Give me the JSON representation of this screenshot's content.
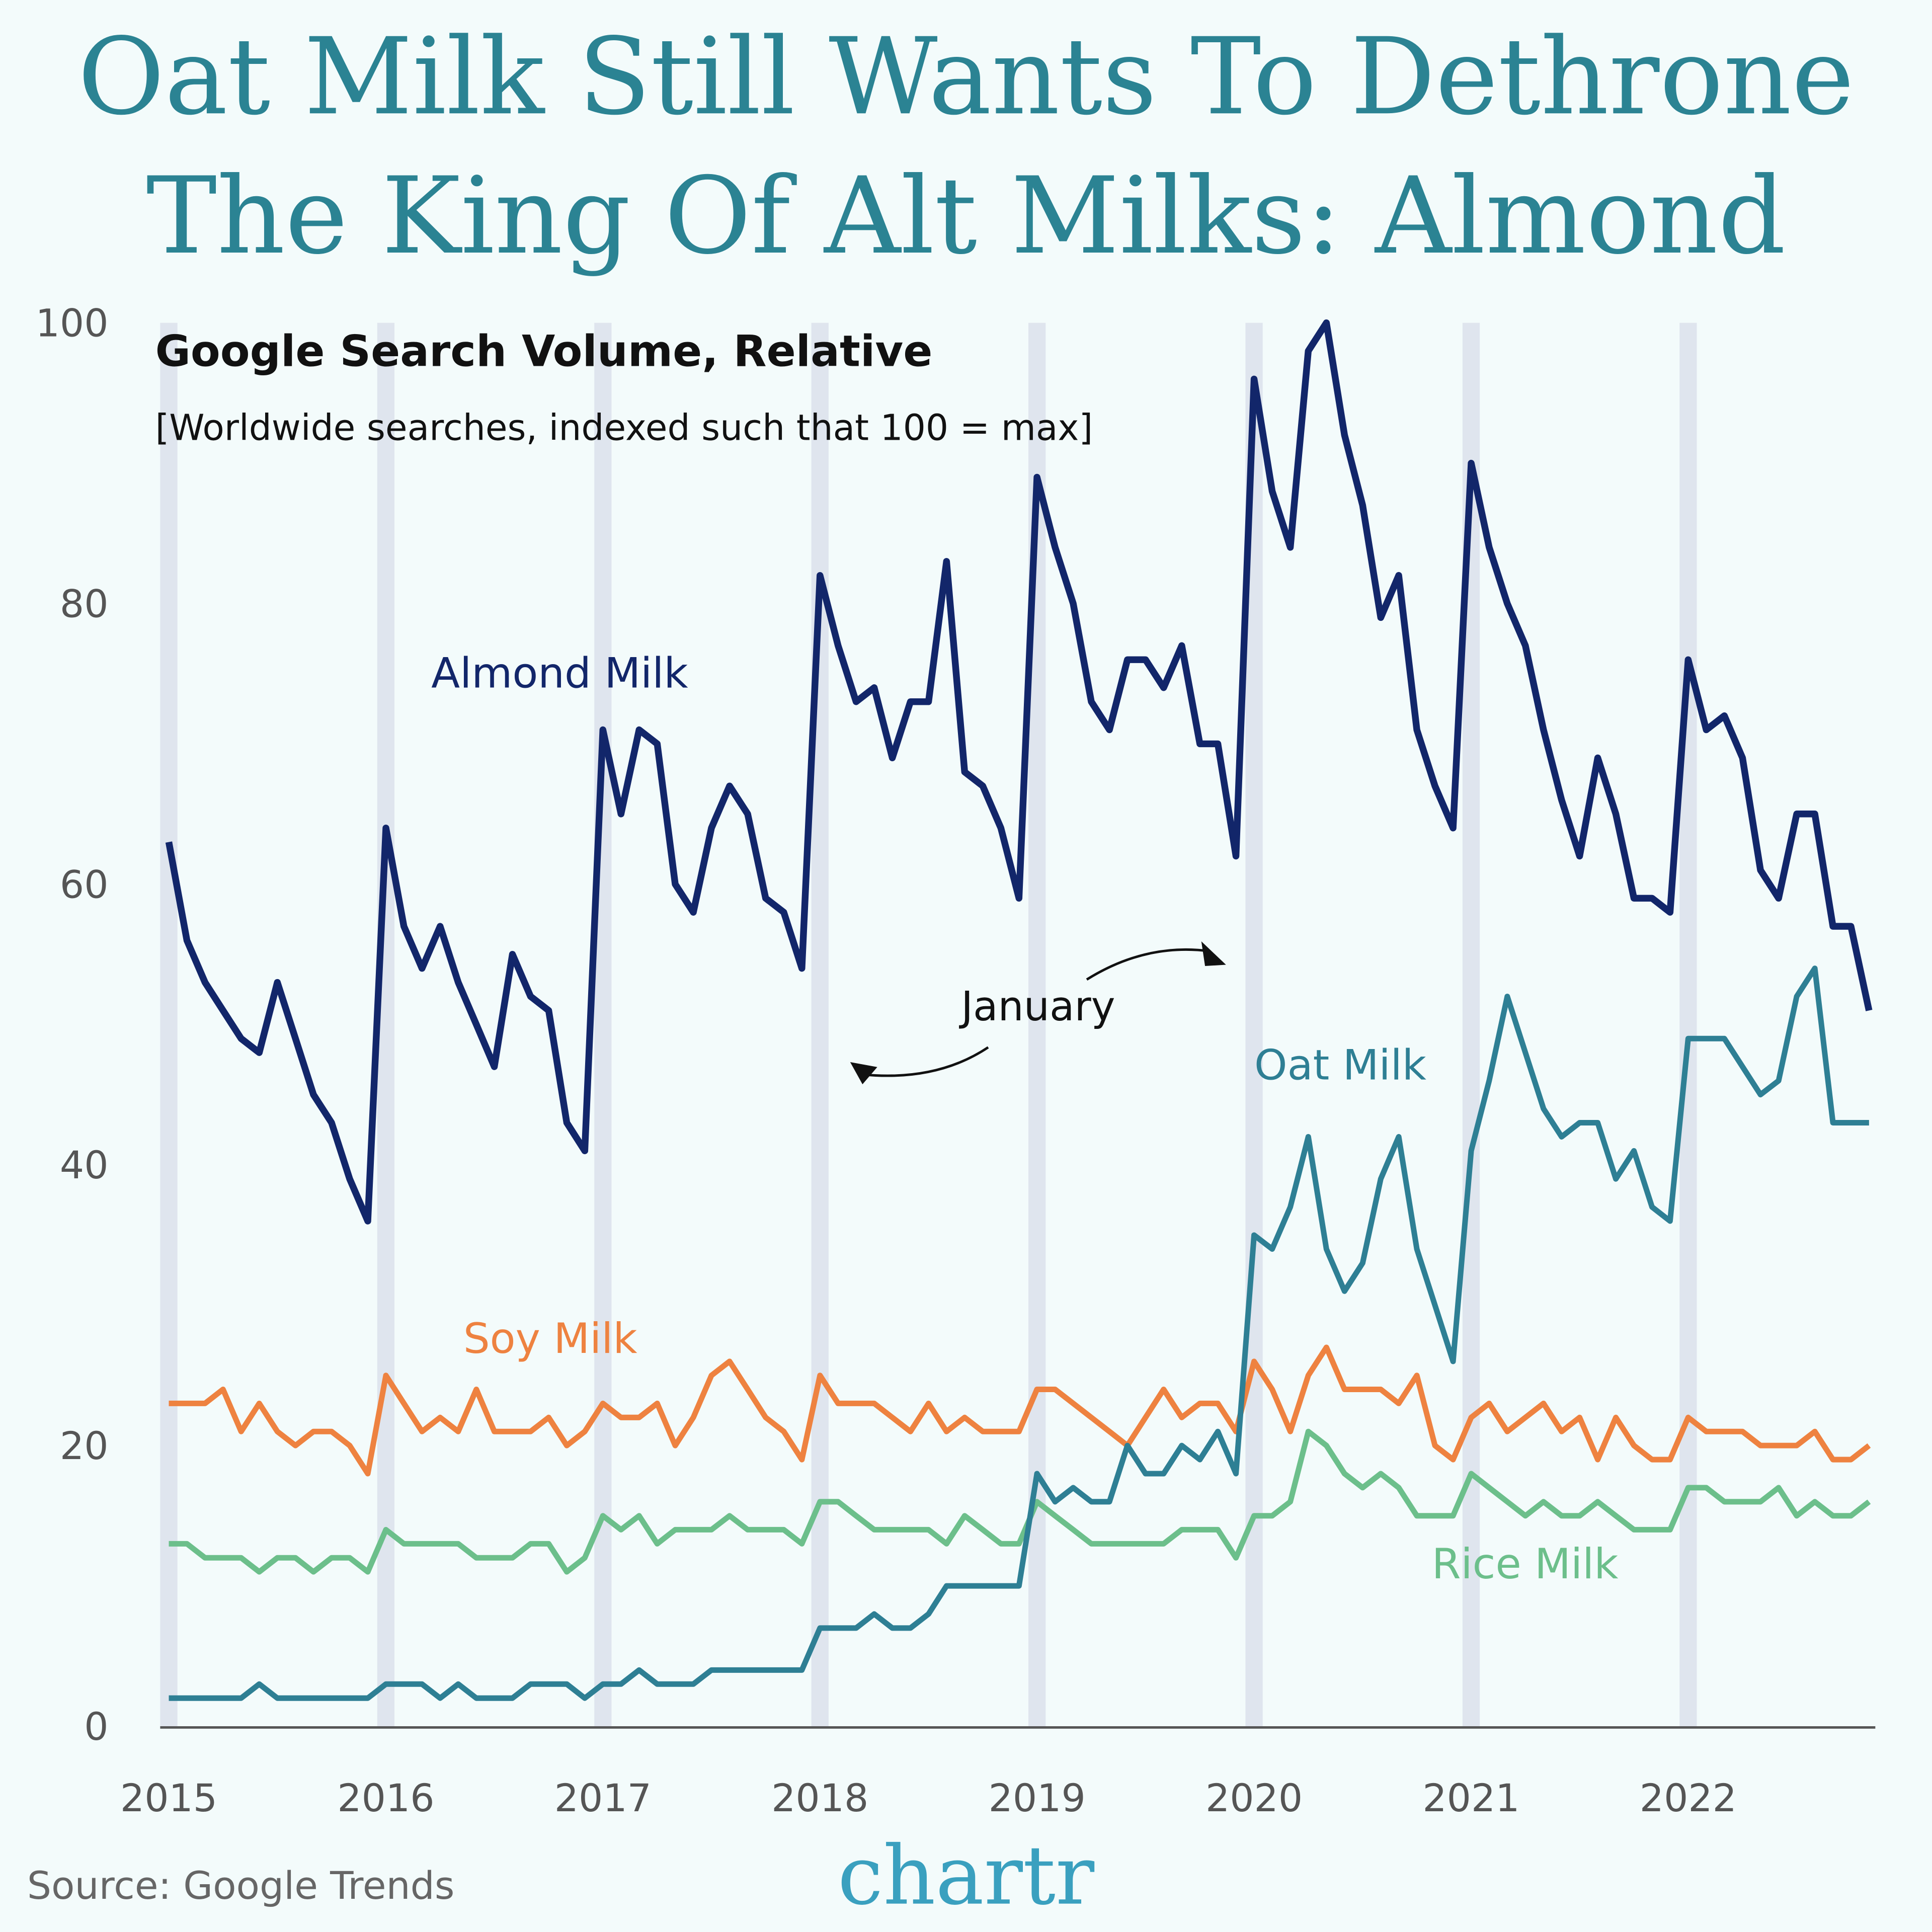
{
  "title_line1": "Oat Milk Still Wants To Dethrone",
  "title_line2": "The King Of Alt Milks: Almond",
  "source": "Source: Google Trends",
  "logo": "chartr",
  "annotation": "January",
  "chart_data": {
    "type": "line",
    "title": "Google Search Volume, Relative",
    "subtitle": "[Worldwide searches, indexed such that 100 = max]",
    "x_start": "2015-01",
    "x_end": "2022-11",
    "frequency": "monthly",
    "x_ticks": [
      "2015",
      "2016",
      "2017",
      "2018",
      "2019",
      "2020",
      "2021",
      "2022"
    ],
    "y_ticks": [
      0,
      20,
      40,
      60,
      80,
      100
    ],
    "ylim": [
      0,
      100
    ],
    "grid": false,
    "january_bands": true,
    "series": [
      {
        "name": "Almond Milk",
        "color": "#12266a",
        "values": [
          63,
          56,
          53,
          51,
          49,
          48,
          53,
          49,
          45,
          43,
          39,
          36,
          64,
          57,
          54,
          57,
          53,
          50,
          47,
          55,
          52,
          51,
          43,
          41,
          71,
          65,
          71,
          70,
          60,
          58,
          64,
          67,
          65,
          59,
          58,
          54,
          82,
          77,
          73,
          74,
          69,
          73,
          73,
          83,
          68,
          67,
          64,
          59,
          89,
          84,
          80,
          73,
          71,
          76,
          76,
          74,
          77,
          70,
          70,
          62,
          96,
          88,
          84,
          98,
          100,
          92,
          87,
          79,
          82,
          71,
          67,
          64,
          90,
          84,
          80,
          77,
          71,
          66,
          62,
          69,
          65,
          59,
          59,
          58,
          76,
          71,
          72,
          69,
          61,
          59,
          65,
          65,
          57,
          57,
          51
        ]
      },
      {
        "name": "Oat Milk",
        "color": "#2e7f94",
        "values": [
          2,
          2,
          2,
          2,
          2,
          3,
          2,
          2,
          2,
          2,
          2,
          2,
          3,
          3,
          3,
          2,
          3,
          2,
          2,
          2,
          3,
          3,
          3,
          2,
          3,
          3,
          4,
          3,
          3,
          3,
          4,
          4,
          4,
          4,
          4,
          4,
          7,
          7,
          7,
          8,
          7,
          7,
          8,
          10,
          10,
          10,
          10,
          10,
          18,
          16,
          17,
          16,
          16,
          20,
          18,
          18,
          20,
          19,
          21,
          18,
          35,
          34,
          37,
          42,
          34,
          31,
          33,
          39,
          42,
          34,
          30,
          26,
          41,
          46,
          52,
          48,
          44,
          42,
          43,
          43,
          39,
          41,
          37,
          36,
          49,
          49,
          49,
          47,
          45,
          46,
          52,
          54,
          43,
          43,
          43
        ]
      },
      {
        "name": "Soy Milk",
        "color": "#ee8240",
        "values": [
          23,
          23,
          23,
          24,
          21,
          23,
          21,
          20,
          21,
          21,
          20,
          18,
          25,
          23,
          21,
          22,
          21,
          24,
          21,
          21,
          21,
          22,
          20,
          21,
          23,
          22,
          22,
          23,
          20,
          22,
          25,
          26,
          24,
          22,
          21,
          19,
          25,
          23,
          23,
          23,
          22,
          21,
          23,
          21,
          22,
          21,
          21,
          21,
          24,
          24,
          23,
          22,
          21,
          20,
          22,
          24,
          22,
          23,
          23,
          21,
          26,
          24,
          21,
          25,
          27,
          24,
          24,
          24,
          23,
          25,
          20,
          19,
          22,
          23,
          21,
          22,
          23,
          21,
          22,
          19,
          22,
          20,
          19,
          19,
          22,
          21,
          21,
          21,
          20,
          20,
          20,
          21,
          19,
          19,
          20
        ]
      },
      {
        "name": "Rice Milk",
        "color": "#6cbf8b",
        "values": [
          13,
          13,
          12,
          12,
          12,
          11,
          12,
          12,
          11,
          12,
          12,
          11,
          14,
          13,
          13,
          13,
          13,
          12,
          12,
          12,
          13,
          13,
          11,
          12,
          15,
          14,
          15,
          13,
          14,
          14,
          14,
          15,
          14,
          14,
          14,
          13,
          16,
          16,
          15,
          14,
          14,
          14,
          14,
          13,
          15,
          14,
          13,
          13,
          16,
          15,
          14,
          13,
          13,
          13,
          13,
          13,
          14,
          14,
          14,
          12,
          15,
          15,
          16,
          21,
          20,
          18,
          17,
          18,
          17,
          15,
          15,
          15,
          18,
          17,
          16,
          15,
          16,
          15,
          15,
          16,
          15,
          14,
          14,
          14,
          17,
          17,
          16,
          16,
          16,
          17,
          15,
          16,
          15,
          15,
          16
        ]
      }
    ]
  }
}
